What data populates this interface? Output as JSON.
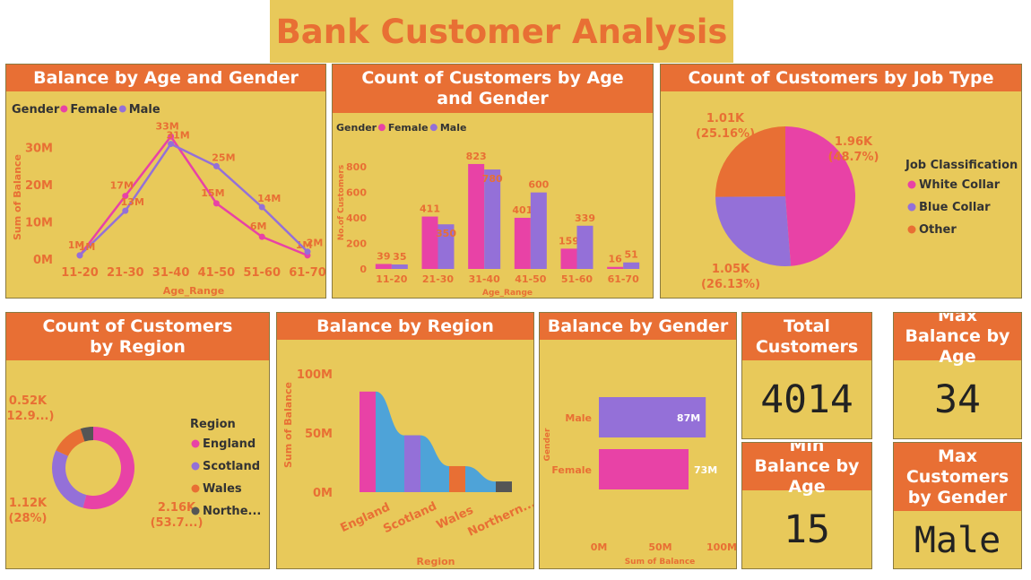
{
  "dashboard_title": "Bank Customer Analysis",
  "colors": {
    "female": "#e842a6",
    "male": "#9470d8",
    "other": "#e86f34",
    "accent": "#e86f34",
    "bg": "#e8c95a",
    "northern": "#555555",
    "blue": "#4ea3d8"
  },
  "chart_data": [
    {
      "id": "balance_age_gender",
      "type": "line",
      "title": "Balance by Age and Gender",
      "legend_title": "Gender",
      "legend_position": "top-left",
      "xlabel": "Age_Range",
      "ylabel": "Sum of Balance",
      "categories": [
        "11-20",
        "21-30",
        "31-40",
        "41-50",
        "51-60",
        "61-70"
      ],
      "y_ticks": [
        "0M",
        "10M",
        "20M",
        "30M"
      ],
      "ylim": [
        0,
        35
      ],
      "series": [
        {
          "name": "Female",
          "values": [
            1,
            17,
            33,
            15,
            6,
            1
          ],
          "labels": [
            "1M",
            "17M",
            "33M",
            "15M",
            "6M",
            "1M"
          ]
        },
        {
          "name": "Male",
          "values": [
            1,
            13,
            31,
            25,
            14,
            2
          ],
          "labels": [
            "1M",
            "13M",
            "31M",
            "25M",
            "14M",
            "2M"
          ]
        }
      ]
    },
    {
      "id": "count_age_gender",
      "type": "bar",
      "title": "Count of Customers by Age and Gender",
      "legend_title": "Gender",
      "legend_position": "top-left",
      "xlabel": "Age_Range",
      "ylabel": "No.of Customers",
      "categories": [
        "11-20",
        "21-30",
        "31-40",
        "41-50",
        "51-60",
        "61-70"
      ],
      "y_ticks": [
        0,
        200,
        400,
        600,
        800
      ],
      "ylim": [
        0,
        900
      ],
      "series": [
        {
          "name": "Female",
          "values": [
            39,
            411,
            823,
            401,
            159,
            16
          ]
        },
        {
          "name": "Male",
          "values": [
            35,
            350,
            780,
            600,
            339,
            51
          ]
        }
      ]
    },
    {
      "id": "job_type",
      "type": "pie",
      "title": "Count of Customers by Job Type",
      "legend_title": "Job Classification",
      "legend_position": "right",
      "slices": [
        {
          "name": "White Collar",
          "value": 1960,
          "label": "1.96K",
          "pct": "(48.7%)"
        },
        {
          "name": "Blue Collar",
          "value": 1050,
          "label": "1.05K",
          "pct": "(26.13%)"
        },
        {
          "name": "Other",
          "value": 1010,
          "label": "1.01K",
          "pct": "(25.16%)"
        }
      ]
    },
    {
      "id": "region_count",
      "type": "pie",
      "title": "Count of Customers by Region",
      "legend_title": "Region",
      "legend_position": "right",
      "slices": [
        {
          "name": "England",
          "value": 2160,
          "label": "2.16K",
          "pct": "(53.7...)"
        },
        {
          "name": "Scotland",
          "value": 1120,
          "label": "1.12K",
          "pct": "(28%)"
        },
        {
          "name": "Wales",
          "value": 520,
          "label": "0.52K",
          "pct": "(12.9...)"
        },
        {
          "name": "Northe...",
          "value": 200
        }
      ]
    },
    {
      "id": "balance_region",
      "type": "bar",
      "title": "Balance by Region",
      "xlabel": "Region",
      "ylabel": "Sum of Balance",
      "categories": [
        "England",
        "Scotland",
        "Wales",
        "Northern..."
      ],
      "values": [
        85,
        48,
        22,
        9
      ],
      "y_ticks": [
        "0M",
        "50M",
        "100M"
      ],
      "ylim": [
        0,
        100
      ]
    },
    {
      "id": "balance_gender",
      "type": "bar",
      "title": "Balance by Gender",
      "xlabel": "Sum of Balance",
      "ylabel": "Gender",
      "categories": [
        "Male",
        "Female"
      ],
      "values": [
        87,
        73
      ],
      "labels": [
        "87M",
        "73M"
      ],
      "x_ticks": [
        "0M",
        "50M",
        "100M"
      ],
      "xlim": [
        0,
        100
      ]
    }
  ],
  "kpis": {
    "total_customers": {
      "label": "Total Customers",
      "value": "4014"
    },
    "max_balance_age": {
      "label": "Max Balance by Age",
      "value": "34"
    },
    "min_balance_age": {
      "label": "Min Balance by Age",
      "value": "15"
    },
    "max_customers_gender": {
      "label": "Max Customers by Gender",
      "value": "Male"
    }
  }
}
